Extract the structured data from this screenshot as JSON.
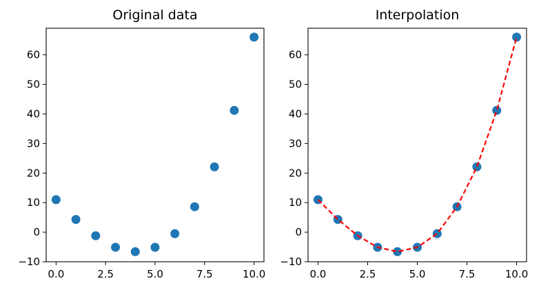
{
  "chart_data": [
    {
      "type": "scatter",
      "title": "Original data",
      "xlabel": "",
      "ylabel": "",
      "xlim": [
        -0.5,
        10.5
      ],
      "ylim": [
        -10,
        69
      ],
      "xticks": [
        0.0,
        2.5,
        5.0,
        7.5,
        10.0
      ],
      "xtick_labels": [
        "0.0",
        "2.5",
        "5.0",
        "7.5",
        "10.0"
      ],
      "yticks": [
        -10,
        0,
        10,
        20,
        30,
        40,
        50,
        60
      ],
      "ytick_labels": [
        "−10",
        "0",
        "10",
        "20",
        "30",
        "40",
        "50",
        "60"
      ],
      "grid": false,
      "series": [
        {
          "marker_color": "#1f77b4",
          "x": [
            0,
            1,
            2,
            3,
            4,
            5,
            6,
            7,
            8,
            9,
            10
          ],
          "y": [
            11,
            4.3,
            -1.2,
            -5.1,
            -6.6,
            -5.1,
            -0.5,
            8.6,
            22.1,
            41.2,
            66
          ]
        }
      ]
    },
    {
      "type": "line",
      "title": "Interpolation",
      "xlabel": "",
      "ylabel": "",
      "xlim": [
        -0.5,
        10.5
      ],
      "ylim": [
        -10,
        69
      ],
      "xticks": [
        0.0,
        2.5,
        5.0,
        7.5,
        10.0
      ],
      "xtick_labels": [
        "0.0",
        "2.5",
        "5.0",
        "7.5",
        "10.0"
      ],
      "yticks": [
        -10,
        0,
        10,
        20,
        30,
        40,
        50,
        60
      ],
      "ytick_labels": [
        "−10",
        "0",
        "10",
        "20",
        "30",
        "40",
        "50",
        "60"
      ],
      "grid": false,
      "series": [
        {
          "marker_color": "#1f77b4",
          "x": [
            0,
            1,
            2,
            3,
            4,
            5,
            6,
            7,
            8,
            9,
            10
          ],
          "y": [
            11,
            4.3,
            -1.2,
            -5.1,
            -6.6,
            -5.1,
            -0.5,
            8.6,
            22.1,
            41.2,
            66
          ]
        },
        {
          "line_color": "#ff0000",
          "line_style": "dashed",
          "x": [
            0,
            1,
            2,
            3,
            4,
            5,
            6,
            7,
            8,
            9,
            10
          ],
          "y": [
            11,
            4.3,
            -1.2,
            -5.1,
            -6.6,
            -5.1,
            -0.5,
            8.6,
            22.1,
            41.2,
            66
          ]
        }
      ]
    }
  ]
}
